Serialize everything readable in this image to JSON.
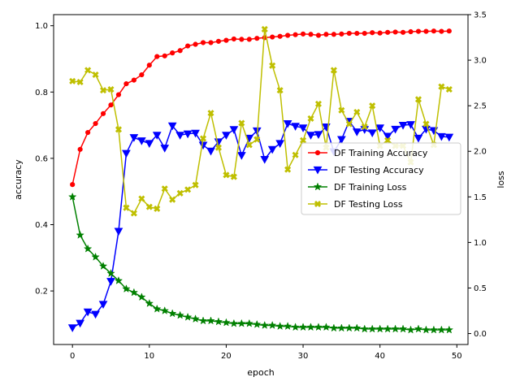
{
  "chart_data": {
    "type": "line",
    "xlabel": "epoch",
    "ylabel_left": "accuracy",
    "ylabel_right": "loss",
    "xlim": [
      -2.45,
      51.45
    ],
    "ylim_left": [
      0.0385,
      1.0335
    ],
    "ylim_right": [
      -0.12,
      3.5
    ],
    "x_ticks": [
      0,
      10,
      20,
      30,
      40,
      50
    ],
    "y_ticks_left": [
      0.2,
      0.4,
      0.6,
      0.8,
      1.0
    ],
    "y_ticks_right": [
      0.0,
      0.5,
      1.0,
      1.5,
      2.0,
      2.5,
      3.0,
      3.5
    ],
    "x_tick_labels": [
      "0",
      "10",
      "20",
      "30",
      "40",
      "50"
    ],
    "y_tick_labels_left": [
      "0.2",
      "0.4",
      "0.6",
      "0.8",
      "1.0"
    ],
    "y_tick_labels_right": [
      "0.0",
      "0.5",
      "1.0",
      "1.5",
      "2.0",
      "2.5",
      "3.0",
      "3.5"
    ],
    "grid": false,
    "legend_position": "center-right",
    "x": [
      0,
      1,
      2,
      3,
      4,
      5,
      6,
      7,
      8,
      9,
      10,
      11,
      12,
      13,
      14,
      15,
      16,
      17,
      18,
      19,
      20,
      21,
      22,
      23,
      24,
      25,
      26,
      27,
      28,
      29,
      30,
      31,
      32,
      33,
      34,
      35,
      36,
      37,
      38,
      39,
      40,
      41,
      42,
      43,
      44,
      45,
      46,
      47,
      48,
      49
    ],
    "series": [
      {
        "name": "DF Training Accuracy",
        "axis": "left",
        "color": "#ff0000",
        "marker": "circle",
        "values": [
          0.521,
          0.627,
          0.678,
          0.705,
          0.735,
          0.761,
          0.792,
          0.825,
          0.836,
          0.852,
          0.881,
          0.907,
          0.909,
          0.918,
          0.925,
          0.939,
          0.944,
          0.949,
          0.949,
          0.953,
          0.956,
          0.96,
          0.959,
          0.959,
          0.962,
          0.964,
          0.966,
          0.968,
          0.971,
          0.973,
          0.975,
          0.974,
          0.971,
          0.974,
          0.974,
          0.975,
          0.977,
          0.977,
          0.977,
          0.979,
          0.978,
          0.98,
          0.981,
          0.98,
          0.982,
          0.983,
          0.983,
          0.984,
          0.983,
          0.984
        ]
      },
      {
        "name": "DF Testing Accuracy",
        "axis": "left",
        "color": "#0000ff",
        "marker": "triangle-down",
        "values": [
          0.089,
          0.103,
          0.137,
          0.13,
          0.16,
          0.229,
          0.38,
          0.615,
          0.663,
          0.653,
          0.645,
          0.67,
          0.631,
          0.698,
          0.67,
          0.674,
          0.676,
          0.64,
          0.622,
          0.65,
          0.67,
          0.687,
          0.609,
          0.661,
          0.683,
          0.597,
          0.627,
          0.645,
          0.705,
          0.697,
          0.692,
          0.67,
          0.672,
          0.695,
          0.62,
          0.657,
          0.712,
          0.68,
          0.687,
          0.677,
          0.692,
          0.667,
          0.688,
          0.7,
          0.702,
          0.661,
          0.688,
          0.684,
          0.666,
          0.664
        ]
      },
      {
        "name": "DF Training Loss",
        "axis": "right",
        "color": "#008000",
        "marker": "star",
        "values": [
          1.5,
          1.08,
          0.93,
          0.84,
          0.74,
          0.66,
          0.58,
          0.49,
          0.45,
          0.4,
          0.33,
          0.27,
          0.25,
          0.22,
          0.2,
          0.18,
          0.16,
          0.14,
          0.14,
          0.13,
          0.12,
          0.11,
          0.11,
          0.11,
          0.1,
          0.09,
          0.09,
          0.08,
          0.08,
          0.07,
          0.07,
          0.07,
          0.07,
          0.07,
          0.06,
          0.06,
          0.06,
          0.06,
          0.05,
          0.05,
          0.05,
          0.05,
          0.05,
          0.05,
          0.04,
          0.05,
          0.04,
          0.04,
          0.04,
          0.04
        ]
      },
      {
        "name": "DF Testing Loss",
        "axis": "right",
        "color": "#bfbf00",
        "marker": "x",
        "values": [
          2.77,
          2.76,
          2.89,
          2.84,
          2.67,
          2.68,
          2.24,
          1.38,
          1.32,
          1.48,
          1.39,
          1.37,
          1.59,
          1.47,
          1.54,
          1.58,
          1.63,
          2.14,
          2.42,
          2.04,
          1.74,
          1.72,
          2.31,
          2.07,
          2.13,
          3.34,
          2.94,
          2.67,
          1.8,
          1.96,
          2.12,
          2.36,
          2.52,
          2.04,
          2.89,
          2.45,
          2.3,
          2.43,
          2.27,
          2.5,
          2.06,
          2.12,
          2.06,
          2.06,
          1.88,
          2.57,
          2.3,
          2.07,
          2.71,
          2.68
        ]
      }
    ]
  }
}
